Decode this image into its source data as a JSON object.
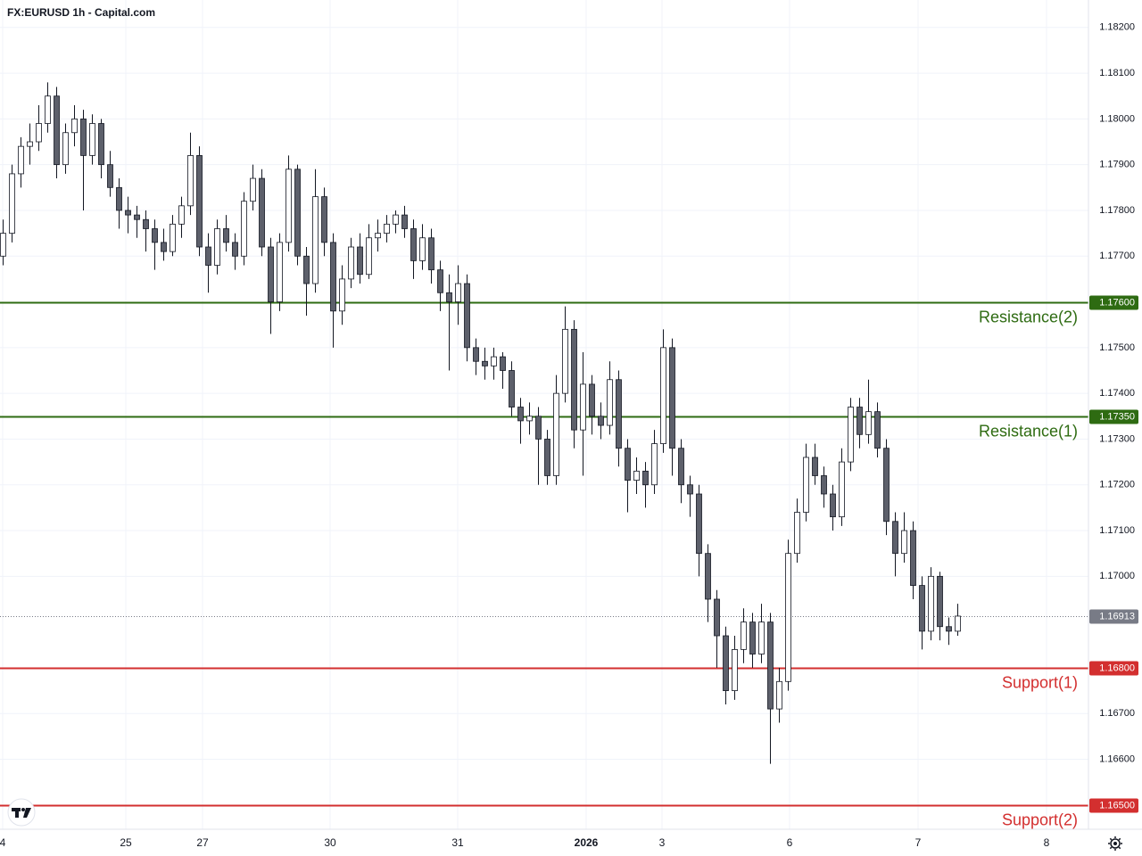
{
  "chart_data": {
    "type": "candlestick",
    "title": "FX:EURUSD 1h - Capital.com",
    "xlim": [
      -0.3,
      121.7
    ],
    "ylim": [
      1.16447,
      1.1826
    ],
    "yticks": [
      {
        "value": 1.182,
        "label": "1.18200"
      },
      {
        "value": 1.181,
        "label": "1.18100"
      },
      {
        "value": 1.18,
        "label": "1.18000"
      },
      {
        "value": 1.179,
        "label": "1.17900"
      },
      {
        "value": 1.178,
        "label": "1.17800"
      },
      {
        "value": 1.177,
        "label": "1.17700"
      },
      {
        "value": 1.175,
        "label": "1.17500"
      },
      {
        "value": 1.174,
        "label": "1.17400"
      },
      {
        "value": 1.173,
        "label": "1.17300"
      },
      {
        "value": 1.172,
        "label": "1.17200"
      },
      {
        "value": 1.171,
        "label": "1.17100"
      },
      {
        "value": 1.17,
        "label": "1.17000"
      },
      {
        "value": 1.167,
        "label": "1.16700"
      },
      {
        "value": 1.166,
        "label": "1.16600"
      }
    ],
    "xticks": [
      {
        "value": 0,
        "label": "4"
      },
      {
        "value": 13.8,
        "label": "25"
      },
      {
        "value": 22.4,
        "label": "27"
      },
      {
        "value": 36.7,
        "label": "30"
      },
      {
        "value": 51,
        "label": "31"
      },
      {
        "value": 65.4,
        "label": "2026"
      },
      {
        "value": 73.9,
        "label": "3"
      },
      {
        "value": 88.2,
        "label": "6"
      },
      {
        "value": 102.6,
        "label": "7"
      },
      {
        "value": 117,
        "label": "8"
      }
    ],
    "grid": true,
    "up_color": "#ffffff",
    "down_color": "#5d606b",
    "candles": [
      [
        1.177,
        1.1778,
        1.1768,
        1.1775
      ],
      [
        1.1775,
        1.179,
        1.1773,
        1.1788
      ],
      [
        1.1788,
        1.1796,
        1.1785,
        1.1794
      ],
      [
        1.1794,
        1.1799,
        1.179,
        1.1795
      ],
      [
        1.1795,
        1.1803,
        1.1793,
        1.1799
      ],
      [
        1.1799,
        1.1808,
        1.1797,
        1.1805
      ],
      [
        1.1805,
        1.1807,
        1.1787,
        1.179
      ],
      [
        1.179,
        1.1799,
        1.1788,
        1.1797
      ],
      [
        1.1797,
        1.1803,
        1.1794,
        1.18
      ],
      [
        1.18,
        1.1802,
        1.178,
        1.1792
      ],
      [
        1.1792,
        1.1801,
        1.179,
        1.1799
      ],
      [
        1.1799,
        1.18,
        1.1787,
        1.179
      ],
      [
        1.179,
        1.1793,
        1.1783,
        1.1785
      ],
      [
        1.1785,
        1.1787,
        1.1776,
        1.178
      ],
      [
        1.178,
        1.1783,
        1.1775,
        1.1779
      ],
      [
        1.1779,
        1.1781,
        1.1774,
        1.1778
      ],
      [
        1.1778,
        1.178,
        1.1771,
        1.1776
      ],
      [
        1.1776,
        1.1778,
        1.1767,
        1.1773
      ],
      [
        1.1773,
        1.1776,
        1.1769,
        1.1771
      ],
      [
        1.1771,
        1.1779,
        1.177,
        1.1777
      ],
      [
        1.1777,
        1.1783,
        1.1774,
        1.1781
      ],
      [
        1.1781,
        1.1797,
        1.1779,
        1.1792
      ],
      [
        1.1792,
        1.1794,
        1.177,
        1.1772
      ],
      [
        1.1772,
        1.1775,
        1.1762,
        1.1768
      ],
      [
        1.1768,
        1.1778,
        1.1766,
        1.1776
      ],
      [
        1.1776,
        1.1779,
        1.1771,
        1.1773
      ],
      [
        1.1773,
        1.1775,
        1.1767,
        1.177
      ],
      [
        1.177,
        1.1784,
        1.1768,
        1.1782
      ],
      [
        1.1782,
        1.179,
        1.178,
        1.1787
      ],
      [
        1.1787,
        1.1789,
        1.177,
        1.1772
      ],
      [
        1.1772,
        1.1774,
        1.1753,
        1.176
      ],
      [
        1.176,
        1.1775,
        1.1758,
        1.1773
      ],
      [
        1.1773,
        1.1792,
        1.1771,
        1.1789
      ],
      [
        1.1789,
        1.179,
        1.1768,
        1.177
      ],
      [
        1.177,
        1.1772,
        1.1757,
        1.1764
      ],
      [
        1.1764,
        1.1789,
        1.1762,
        1.1783
      ],
      [
        1.1783,
        1.1785,
        1.177,
        1.1773
      ],
      [
        1.1773,
        1.1775,
        1.175,
        1.1758
      ],
      [
        1.1758,
        1.1768,
        1.1755,
        1.1765
      ],
      [
        1.1765,
        1.1774,
        1.1763,
        1.1772
      ],
      [
        1.1772,
        1.1775,
        1.1764,
        1.1766
      ],
      [
        1.1766,
        1.1777,
        1.1765,
        1.1774
      ],
      [
        1.1774,
        1.1778,
        1.1771,
        1.1775
      ],
      [
        1.1775,
        1.1779,
        1.1773,
        1.1777
      ],
      [
        1.1777,
        1.178,
        1.1775,
        1.1779
      ],
      [
        1.1779,
        1.1781,
        1.1774,
        1.1776
      ],
      [
        1.1776,
        1.1778,
        1.1765,
        1.1769
      ],
      [
        1.1769,
        1.1777,
        1.1767,
        1.1774
      ],
      [
        1.1774,
        1.1776,
        1.1764,
        1.1767
      ],
      [
        1.1767,
        1.1769,
        1.1758,
        1.1762
      ],
      [
        1.1762,
        1.1766,
        1.1745,
        1.176
      ],
      [
        1.176,
        1.1768,
        1.1755,
        1.1764
      ],
      [
        1.1764,
        1.1766,
        1.1747,
        1.175
      ],
      [
        1.175,
        1.1752,
        1.1744,
        1.1747
      ],
      [
        1.1747,
        1.175,
        1.1743,
        1.1746
      ],
      [
        1.1746,
        1.175,
        1.1743,
        1.1748
      ],
      [
        1.1748,
        1.1749,
        1.1741,
        1.1745
      ],
      [
        1.1745,
        1.1747,
        1.1735,
        1.1737
      ],
      [
        1.1737,
        1.1739,
        1.1729,
        1.1734
      ],
      [
        1.1734,
        1.1738,
        1.1731,
        1.1735
      ],
      [
        1.1735,
        1.1737,
        1.172,
        1.173
      ],
      [
        1.173,
        1.1732,
        1.172,
        1.1722
      ],
      [
        1.1722,
        1.1744,
        1.172,
        1.174
      ],
      [
        1.174,
        1.1759,
        1.1738,
        1.1754
      ],
      [
        1.1754,
        1.1756,
        1.1728,
        1.1732
      ],
      [
        1.1732,
        1.1749,
        1.1722,
        1.1742
      ],
      [
        1.1742,
        1.1744,
        1.1731,
        1.1735
      ],
      [
        1.1735,
        1.1738,
        1.173,
        1.1733
      ],
      [
        1.1733,
        1.1747,
        1.1731,
        1.1743
      ],
      [
        1.1743,
        1.1745,
        1.1724,
        1.1728
      ],
      [
        1.1728,
        1.173,
        1.1714,
        1.1721
      ],
      [
        1.1721,
        1.1726,
        1.1718,
        1.1723
      ],
      [
        1.1723,
        1.1725,
        1.1715,
        1.172
      ],
      [
        1.172,
        1.1732,
        1.1718,
        1.1729
      ],
      [
        1.1729,
        1.1754,
        1.1727,
        1.175
      ],
      [
        1.175,
        1.1752,
        1.1722,
        1.1728
      ],
      [
        1.1728,
        1.173,
        1.1716,
        1.172
      ],
      [
        1.172,
        1.1722,
        1.1713,
        1.1718
      ],
      [
        1.1718,
        1.172,
        1.17,
        1.1705
      ],
      [
        1.1705,
        1.1707,
        1.169,
        1.1695
      ],
      [
        1.1695,
        1.1697,
        1.168,
        1.1687
      ],
      [
        1.1687,
        1.1689,
        1.1672,
        1.1675
      ],
      [
        1.1675,
        1.1687,
        1.1673,
        1.1684
      ],
      [
        1.1684,
        1.1693,
        1.1681,
        1.169
      ],
      [
        1.169,
        1.1692,
        1.168,
        1.1683
      ],
      [
        1.1683,
        1.1694,
        1.1681,
        1.169
      ],
      [
        1.169,
        1.1692,
        1.1659,
        1.1671
      ],
      [
        1.1671,
        1.168,
        1.1668,
        1.1677
      ],
      [
        1.1677,
        1.1708,
        1.1675,
        1.1705
      ],
      [
        1.1705,
        1.1717,
        1.1703,
        1.1714
      ],
      [
        1.1714,
        1.1729,
        1.1712,
        1.1726
      ],
      [
        1.1726,
        1.1729,
        1.172,
        1.1722
      ],
      [
        1.1722,
        1.1724,
        1.1715,
        1.1718
      ],
      [
        1.1718,
        1.172,
        1.171,
        1.1713
      ],
      [
        1.1713,
        1.1728,
        1.1711,
        1.1725
      ],
      [
        1.1725,
        1.1739,
        1.1723,
        1.1737
      ],
      [
        1.1737,
        1.1739,
        1.1728,
        1.1731
      ],
      [
        1.1731,
        1.1743,
        1.1729,
        1.1736
      ],
      [
        1.1736,
        1.1738,
        1.1726,
        1.1728
      ],
      [
        1.1728,
        1.173,
        1.1709,
        1.1712
      ],
      [
        1.1712,
        1.1714,
        1.17,
        1.1705
      ],
      [
        1.1705,
        1.1714,
        1.1703,
        1.171
      ],
      [
        1.171,
        1.1712,
        1.1695,
        1.1698
      ],
      [
        1.1698,
        1.17,
        1.1684,
        1.1688
      ],
      [
        1.1688,
        1.1702,
        1.1686,
        1.17
      ],
      [
        1.17,
        1.1701,
        1.1686,
        1.1689
      ],
      [
        1.1689,
        1.1691,
        1.1685,
        1.1688
      ],
      [
        1.1688,
        1.1694,
        1.1687,
        1.16913
      ]
    ],
    "levels": [
      {
        "label": "Resistance(2)",
        "value": 1.176,
        "value_label": "1.17600",
        "color": "#2e6b12"
      },
      {
        "label": "Resistance(1)",
        "value": 1.1735,
        "value_label": "1.17350",
        "color": "#2e6b12"
      },
      {
        "label": "Support(1)",
        "value": 1.168,
        "value_label": "1.16800",
        "color": "#d32f2f"
      },
      {
        "label": "Support(2)",
        "value": 1.165,
        "value_label": "1.16500",
        "color": "#d32f2f"
      }
    ],
    "last_price": {
      "value": 1.16913,
      "label": "1.16913",
      "color": "#787b86"
    }
  }
}
